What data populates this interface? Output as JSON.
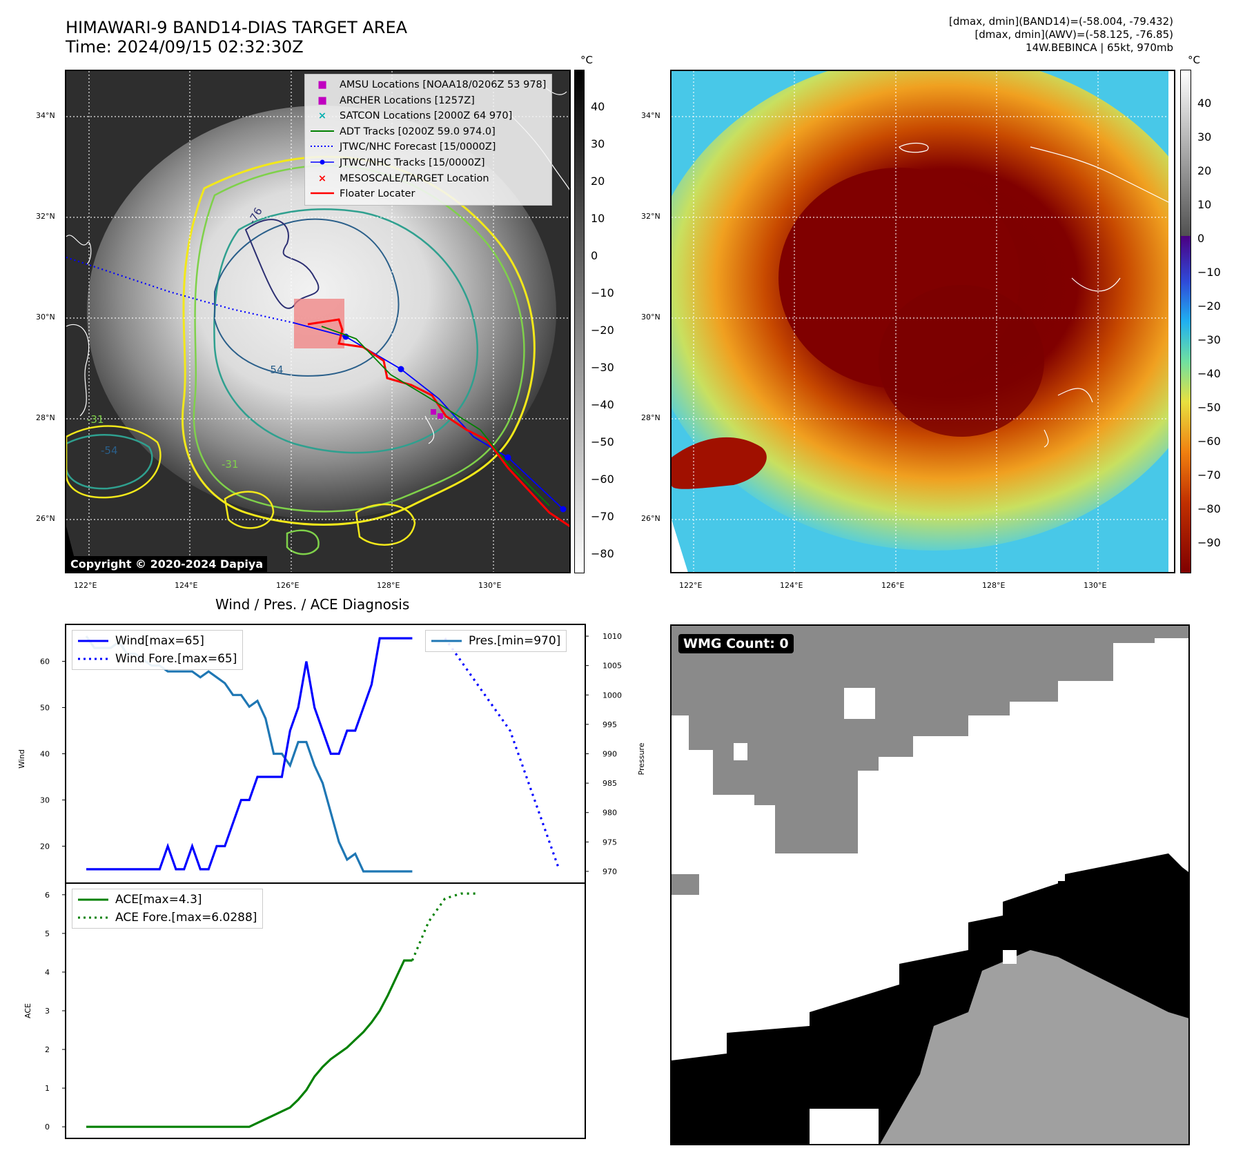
{
  "header": {
    "title_line1": "HIMAWARI-9 BAND14-DIAS TARGET AREA",
    "title_line2": "Time: 2024/09/15 02:32:30Z",
    "stats_line1": "[dmax, dmin](BAND14)=(-58.004, -79.432)",
    "stats_line2": "[dmax, dmin](AWV)=(-58.125, -76.85)",
    "stats_line3": "14W.BEBINCA | 65kt, 970mb"
  },
  "map_left": {
    "copyright": "Copyright © 2020-2024 Dapiya",
    "lat_labels": [
      "34°N",
      "32°N",
      "30°N",
      "28°N",
      "26°N"
    ],
    "lon_labels": [
      "122°E",
      "124°E",
      "126°E",
      "128°E",
      "130°E"
    ],
    "contour_labels": [
      "-76",
      "-54",
      "-54",
      "-31",
      "-31"
    ],
    "colorbar": {
      "unit": "°C",
      "ticks": [
        "40",
        "30",
        "20",
        "10",
        "0",
        "−10",
        "−20",
        "−30",
        "−40",
        "−50",
        "−60",
        "−70",
        "−80"
      ]
    },
    "legend": [
      {
        "symbol": "■",
        "color": "#c000c0",
        "label": "AMSU Locations [NOAA18/0206Z 53 978]"
      },
      {
        "symbol": "■",
        "color": "#c000c0",
        "label": "ARCHER Locations [1257Z]"
      },
      {
        "symbol": "×",
        "color": "#00b0b0",
        "label": "SATCON Locations [2000Z 64 970]"
      },
      {
        "symbol": "line",
        "color": "#008000",
        "label": "ADT Tracks [0200Z 59.0 974.0]"
      },
      {
        "symbol": "dots",
        "color": "#0000ff",
        "label": "JTWC/NHC Forecast [15/0000Z]"
      },
      {
        "symbol": "dotline",
        "color": "#0000ff",
        "label": "JTWC/NHC Tracks [15/0000Z]"
      },
      {
        "symbol": "×",
        "color": "#ff0000",
        "label": "MESOSCALE/TARGET Location"
      },
      {
        "symbol": "line",
        "color": "#ff0000",
        "label": "Floater Locater"
      }
    ]
  },
  "map_right": {
    "lat_labels": [
      "34°N",
      "32°N",
      "30°N",
      "28°N",
      "26°N"
    ],
    "lon_labels": [
      "122°E",
      "124°E",
      "126°E",
      "128°E",
      "130°E"
    ],
    "colorbar": {
      "unit": "°C",
      "ticks": [
        "40",
        "30",
        "20",
        "10",
        "0",
        "−10",
        "−20",
        "−30",
        "−40",
        "−50",
        "−60",
        "−70",
        "−80",
        "−90"
      ]
    }
  },
  "wmg": {
    "label": "WMG Count: 0"
  },
  "diag": {
    "title": "Wind / Pres. / ACE Diagnosis",
    "wind_ylabel": "Wind",
    "pres_ylabel": "Pressure",
    "ace_ylabel": "ACE",
    "wind_ticks": [
      "60",
      "50",
      "40",
      "30",
      "20"
    ],
    "pres_ticks": [
      "1010",
      "1005",
      "1000",
      "995",
      "990",
      "985",
      "980",
      "975",
      "970"
    ],
    "ace_ticks": [
      "6",
      "5",
      "4",
      "3",
      "2",
      "1",
      "0"
    ],
    "legend_wind": "Wind[max=65]",
    "legend_wind_fore": "Wind Fore.[max=65]",
    "legend_pres": "Pres.[min=970]",
    "legend_ace": "ACE[max=4.3]",
    "legend_ace_fore": "ACE Fore.[max=6.0288]"
  },
  "chart_data": [
    {
      "type": "line",
      "title": "Wind / Pres. / ACE Diagnosis",
      "ylabel": "Wind",
      "ylim": [
        12,
        68
      ],
      "series": [
        {
          "name": "Wind[max=65]",
          "color": "#0000ff",
          "x": [
            0,
            1,
            2,
            3,
            4,
            5,
            6,
            7,
            8,
            9,
            10,
            11,
            12,
            13,
            14,
            15,
            16,
            17,
            18,
            19,
            20,
            21,
            22,
            23,
            24,
            25,
            26,
            27,
            28,
            29,
            30,
            31,
            32,
            33,
            34,
            35,
            36,
            37,
            38,
            39,
            40
          ],
          "values": [
            15,
            15,
            15,
            15,
            15,
            15,
            15,
            15,
            15,
            15,
            20,
            15,
            15,
            20,
            15,
            15,
            20,
            20,
            25,
            30,
            30,
            35,
            35,
            35,
            35,
            45,
            50,
            60,
            50,
            45,
            40,
            40,
            45,
            45,
            50,
            55,
            65,
            65,
            65,
            65,
            65
          ]
        },
        {
          "name": "Wind Fore.[max=65]",
          "color": "#0000ff",
          "dashed": true,
          "x": [
            44,
            46,
            48,
            50,
            52,
            54,
            56,
            58
          ],
          "values": [
            65,
            60,
            55,
            50,
            45,
            35,
            25,
            15
          ]
        }
      ]
    },
    {
      "type": "line",
      "ylabel": "Pressure",
      "ylim": [
        968,
        1012
      ],
      "series": [
        {
          "name": "Pres.[min=970]",
          "color": "#1f77b4",
          "x": [
            0,
            1,
            2,
            3,
            4,
            5,
            6,
            7,
            8,
            9,
            10,
            11,
            12,
            13,
            14,
            15,
            16,
            17,
            18,
            19,
            20,
            21,
            22,
            23,
            24,
            25,
            26,
            27,
            28,
            29,
            30,
            31,
            32,
            33,
            34,
            35,
            36,
            37,
            38,
            39,
            40
          ],
          "values": [
            1010,
            1008,
            1008,
            1008,
            1009,
            1007,
            1007,
            1006,
            1005,
            1005,
            1004,
            1004,
            1004,
            1004,
            1003,
            1004,
            1003,
            1002,
            1000,
            1000,
            998,
            999,
            996,
            990,
            990,
            988,
            992,
            992,
            988,
            985,
            980,
            975,
            972,
            973,
            970,
            970,
            970,
            970,
            970,
            970,
            970
          ]
        }
      ]
    },
    {
      "type": "line",
      "ylabel": "ACE",
      "ylim": [
        -0.3,
        6.3
      ],
      "series": [
        {
          "name": "ACE[max=4.3]",
          "color": "#008000",
          "x": [
            0,
            5,
            10,
            15,
            20,
            21,
            22,
            23,
            24,
            25,
            26,
            27,
            28,
            29,
            30,
            31,
            32,
            33,
            34,
            35,
            36,
            37,
            38,
            39,
            40
          ],
          "values": [
            0,
            0,
            0,
            0,
            0,
            0.1,
            0.2,
            0.3,
            0.4,
            0.5,
            0.7,
            0.95,
            1.3,
            1.55,
            1.75,
            1.9,
            2.05,
            2.25,
            2.45,
            2.7,
            3.0,
            3.4,
            3.85,
            4.3,
            4.3
          ]
        },
        {
          "name": "ACE Fore.[max=6.0288]",
          "color": "#008000",
          "dashed": true,
          "x": [
            40,
            42,
            44,
            46,
            48
          ],
          "values": [
            4.3,
            5.3,
            5.9,
            6.03,
            6.03
          ]
        }
      ]
    }
  ]
}
